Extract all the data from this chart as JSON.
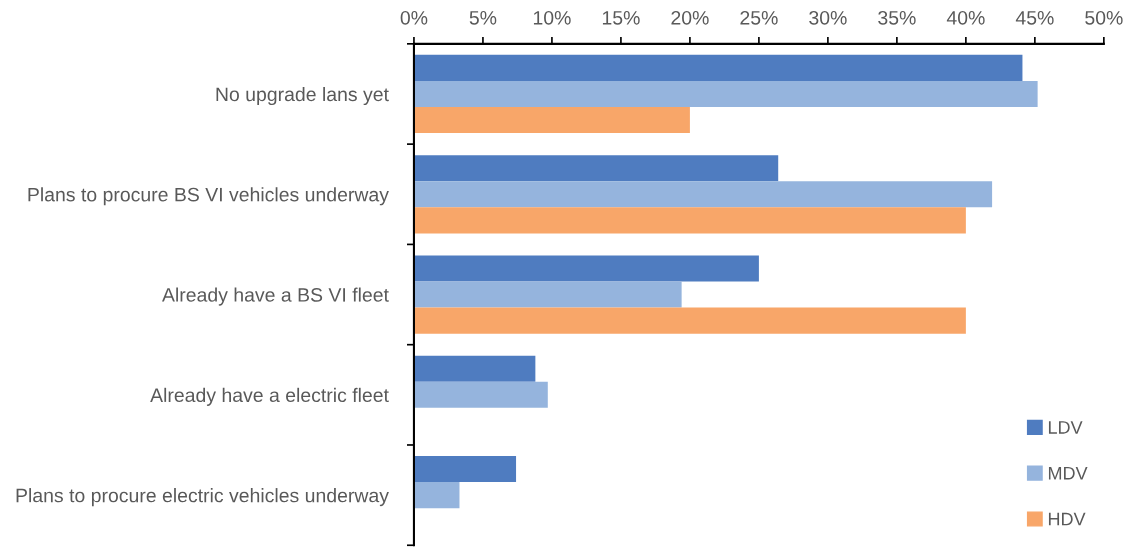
{
  "chart_data": {
    "type": "bar",
    "orientation": "horizontal",
    "categories": [
      "No upgrade lans yet",
      "Plans to procure BS VI vehicles underway",
      "Already have a BS VI fleet",
      "Already have a electric fleet",
      "Plans to procure electric vehicles underway"
    ],
    "series": [
      {
        "name": "LDV",
        "color": "#4f7cc0",
        "values": [
          44.1,
          26.4,
          25.0,
          8.8,
          7.4
        ]
      },
      {
        "name": "MDV",
        "color": "#95b4dd",
        "values": [
          45.2,
          41.9,
          19.4,
          9.7,
          3.3
        ]
      },
      {
        "name": "HDV",
        "color": "#f8a669",
        "values": [
          20.0,
          40.0,
          40.0,
          0,
          0
        ]
      }
    ],
    "xlim": [
      0,
      50
    ],
    "xticks": [
      {
        "value": 0,
        "label": "0%"
      },
      {
        "value": 5,
        "label": "5%"
      },
      {
        "value": 10,
        "label": "10%"
      },
      {
        "value": 15,
        "label": "15%"
      },
      {
        "value": 20,
        "label": "20%"
      },
      {
        "value": 25,
        "label": "25%"
      },
      {
        "value": 30,
        "label": "30%"
      },
      {
        "value": 35,
        "label": "35%"
      },
      {
        "value": 40,
        "label": "40%"
      },
      {
        "value": 45,
        "label": "45%"
      },
      {
        "value": 50,
        "label": "50%"
      }
    ],
    "grid": false,
    "legend": "bottom right"
  }
}
